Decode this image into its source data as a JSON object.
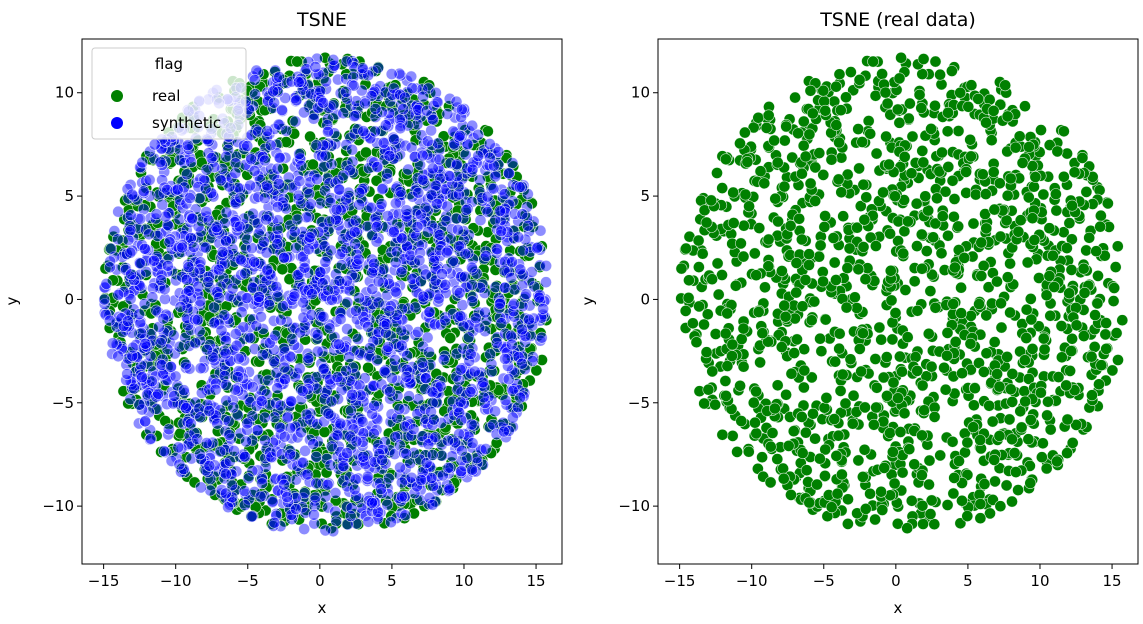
{
  "chart_data": [
    {
      "type": "scatter",
      "title": "TSNE",
      "xlabel": "x",
      "ylabel": "y",
      "xlim": [
        -16.5,
        16.8
      ],
      "ylim": [
        -12.8,
        12.6
      ],
      "xticks": [
        -15,
        -10,
        -5,
        0,
        5,
        10,
        15
      ],
      "yticks": [
        -10,
        -5,
        0,
        5,
        10
      ],
      "xtick_labels": [
        "−15",
        "−10",
        "−5",
        "0",
        "5",
        "10",
        "15"
      ],
      "ytick_labels": [
        "−10",
        "−5",
        "0",
        "5",
        "10"
      ],
      "grid": false,
      "legend": {
        "title": "flag",
        "placement": "top-left",
        "entries": [
          "real",
          "synthetic"
        ]
      },
      "series": [
        {
          "name": "real",
          "color": "#008000",
          "alpha": 1.0,
          "shape": "circular cloud",
          "center": [
            0.5,
            0.2
          ],
          "radius_x": 15.5,
          "radius_y": 11.5,
          "approx_points": 1500
        },
        {
          "name": "synthetic",
          "color": "#0000ff",
          "alpha": 0.45,
          "shape": "circular cloud",
          "center": [
            0.5,
            0.2
          ],
          "radius_x": 15.5,
          "radius_y": 11.5,
          "approx_points": 2400
        }
      ]
    },
    {
      "type": "scatter",
      "title": "TSNE (real data)",
      "xlabel": "x",
      "ylabel": "y",
      "xlim": [
        -16.5,
        16.8
      ],
      "ylim": [
        -12.8,
        12.6
      ],
      "xticks": [
        -15,
        -10,
        -5,
        0,
        5,
        10,
        15
      ],
      "yticks": [
        -10,
        -5,
        0,
        5,
        10
      ],
      "xtick_labels": [
        "−15",
        "−10",
        "−5",
        "0",
        "5",
        "10",
        "15"
      ],
      "ytick_labels": [
        "−10",
        "−5",
        "0",
        "5",
        "10"
      ],
      "grid": false,
      "series": [
        {
          "name": "real",
          "color": "#008000",
          "alpha": 1.0,
          "shape": "circular cloud",
          "center": [
            0.5,
            0.2
          ],
          "radius_x": 15.5,
          "radius_y": 11.5,
          "approx_points": 1500
        }
      ]
    }
  ]
}
